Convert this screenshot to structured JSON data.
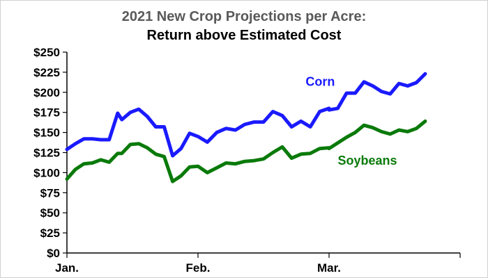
{
  "chart_data": {
    "type": "line",
    "title": "2021 New Crop Projections per Acre:",
    "subtitle": "Return above Estimated Cost",
    "xlabel": "",
    "ylabel": "",
    "ylim": [
      0,
      250
    ],
    "xlim": [
      "2021-01-01",
      "2021-03-31"
    ],
    "y_ticks": [
      "$0",
      "$25",
      "$50",
      "$75",
      "$100",
      "$125",
      "$150",
      "$175",
      "$200",
      "$225",
      "$250"
    ],
    "y_tick_values": [
      0,
      25,
      50,
      75,
      100,
      125,
      150,
      175,
      200,
      225,
      250
    ],
    "x_ticks": [
      "Jan.",
      "Feb.",
      "Mar.",
      ""
    ],
    "x_tick_dates": [
      "2021-01-01",
      "2021-02-01",
      "2021-03-01",
      "2021-03-31"
    ],
    "grid": false,
    "series": [
      {
        "name": "Corn",
        "color": "#1a1aff",
        "points": [
          [
            "2021-01-01",
            129
          ],
          [
            "2021-01-03",
            136
          ],
          [
            "2021-01-05",
            142
          ],
          [
            "2021-01-07",
            142
          ],
          [
            "2021-01-09",
            141
          ],
          [
            "2021-01-11",
            141
          ],
          [
            "2021-01-13",
            174
          ],
          [
            "2021-01-14",
            166
          ],
          [
            "2021-01-16",
            175
          ],
          [
            "2021-01-18",
            179
          ],
          [
            "2021-01-20",
            170
          ],
          [
            "2021-01-22",
            157
          ],
          [
            "2021-01-24",
            157
          ],
          [
            "2021-01-26",
            121
          ],
          [
            "2021-01-28",
            130
          ],
          [
            "2021-01-30",
            149
          ],
          [
            "2021-02-01",
            145
          ],
          [
            "2021-02-03",
            138
          ],
          [
            "2021-02-05",
            150
          ],
          [
            "2021-02-07",
            155
          ],
          [
            "2021-02-09",
            153
          ],
          [
            "2021-02-11",
            160
          ],
          [
            "2021-02-13",
            163
          ],
          [
            "2021-02-15",
            163
          ],
          [
            "2021-02-17",
            176
          ],
          [
            "2021-02-19",
            171
          ],
          [
            "2021-02-21",
            157
          ],
          [
            "2021-02-23",
            164
          ],
          [
            "2021-02-25",
            157
          ],
          [
            "2021-02-27",
            176
          ],
          [
            "2021-02-29",
            180
          ],
          [
            "2021-03-01",
            178
          ],
          [
            "2021-03-03",
            180
          ],
          [
            "2021-03-05",
            199
          ],
          [
            "2021-03-07",
            199
          ],
          [
            "2021-03-09",
            213
          ],
          [
            "2021-03-11",
            208
          ],
          [
            "2021-03-13",
            201
          ],
          [
            "2021-03-15",
            198
          ],
          [
            "2021-03-17",
            211
          ],
          [
            "2021-03-19",
            208
          ],
          [
            "2021-03-21",
            212
          ],
          [
            "2021-03-23",
            223
          ]
        ]
      },
      {
        "name": "Soybeans",
        "color": "#0a7a0a",
        "points": [
          [
            "2021-01-01",
            92
          ],
          [
            "2021-01-03",
            104
          ],
          [
            "2021-01-05",
            111
          ],
          [
            "2021-01-07",
            112
          ],
          [
            "2021-01-09",
            116
          ],
          [
            "2021-01-11",
            113
          ],
          [
            "2021-01-13",
            124
          ],
          [
            "2021-01-14",
            124
          ],
          [
            "2021-01-16",
            135
          ],
          [
            "2021-01-18",
            136
          ],
          [
            "2021-01-20",
            131
          ],
          [
            "2021-01-22",
            123
          ],
          [
            "2021-01-24",
            120
          ],
          [
            "2021-01-26",
            89
          ],
          [
            "2021-01-28",
            96
          ],
          [
            "2021-01-30",
            107
          ],
          [
            "2021-02-01",
            108
          ],
          [
            "2021-02-03",
            100
          ],
          [
            "2021-02-05",
            106
          ],
          [
            "2021-02-07",
            112
          ],
          [
            "2021-02-09",
            111
          ],
          [
            "2021-02-11",
            114
          ],
          [
            "2021-02-13",
            115
          ],
          [
            "2021-02-15",
            117
          ],
          [
            "2021-02-17",
            125
          ],
          [
            "2021-02-19",
            132
          ],
          [
            "2021-02-21",
            118
          ],
          [
            "2021-02-23",
            123
          ],
          [
            "2021-02-25",
            124
          ],
          [
            "2021-02-27",
            130
          ],
          [
            "2021-02-29",
            131
          ],
          [
            "2021-03-01",
            130
          ],
          [
            "2021-03-03",
            137
          ],
          [
            "2021-03-05",
            144
          ],
          [
            "2021-03-07",
            150
          ],
          [
            "2021-03-09",
            159
          ],
          [
            "2021-03-11",
            156
          ],
          [
            "2021-03-13",
            151
          ],
          [
            "2021-03-15",
            148
          ],
          [
            "2021-03-17",
            153
          ],
          [
            "2021-03-19",
            151
          ],
          [
            "2021-03-21",
            155
          ],
          [
            "2021-03-23",
            164
          ]
        ]
      }
    ]
  }
}
